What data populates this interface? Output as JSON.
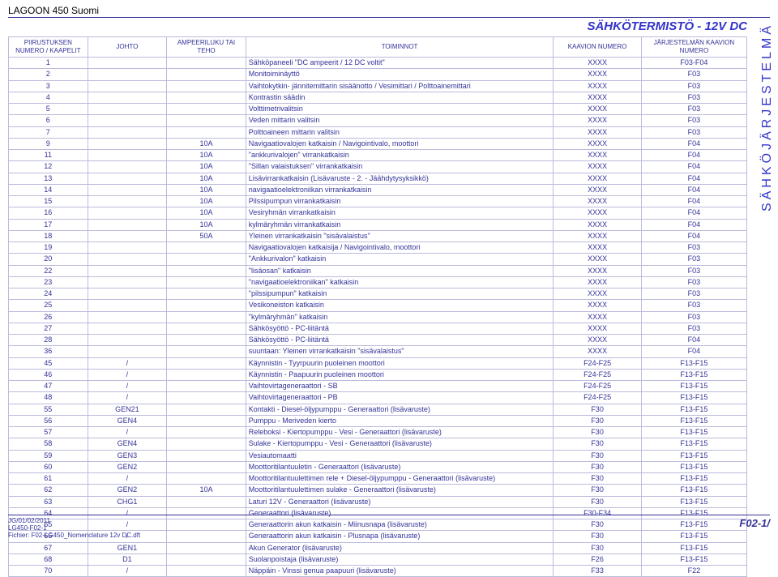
{
  "page": {
    "product": "LAGOON 450 Suomi",
    "header_title_main": "SÄHKÖTERMISTÖ - ",
    "header_title_volt": "12V DC",
    "vertical_label": "SÄHKÖJÄRJESTELMÄ",
    "footer_date": "JG/01/02/2011",
    "footer_code": "LG450-F02-1",
    "footer_file": "Fichier: F02-LG450_Nomenclature 12v DC.dft",
    "footer_page": "F02-1/"
  },
  "columns": [
    "PIIRUSTUKSEN NUMERO / KAAPELIT",
    "JOHTO",
    "AMPEERILUKU TAI TEHO",
    "TOIMINNOT",
    "KAAVION NUMERO",
    "JÄRJESTELMÄN KAAVION NUMERO"
  ],
  "rows": [
    {
      "n": "1",
      "j": "",
      "a": "",
      "f": "Sähköpaneeli \"DC ampeerit / 12 DC voltit\"",
      "k": "XXXX",
      "s": "F03-F04"
    },
    {
      "n": "2",
      "j": "",
      "a": "",
      "f": "Monitoiminäyttö",
      "k": "XXXX",
      "s": "F03"
    },
    {
      "n": "3",
      "j": "",
      "a": "",
      "f": "Vaihtokytkin- jännitemittarin sisäänotto / Vesimittari / Polttoainemittari",
      "k": "XXXX",
      "s": "F03"
    },
    {
      "n": "4",
      "j": "",
      "a": "",
      "f": "Kontrastin säädin",
      "k": "XXXX",
      "s": "F03"
    },
    {
      "n": "5",
      "j": "",
      "a": "",
      "f": "Volttimetrivalitsin",
      "k": "XXXX",
      "s": "F03"
    },
    {
      "n": "6",
      "j": "",
      "a": "",
      "f": "Veden mittarin valitsin",
      "k": "XXXX",
      "s": "F03"
    },
    {
      "n": "7",
      "j": "",
      "a": "",
      "f": "Polttoaineen mittarin valitsin",
      "k": "XXXX",
      "s": "F03"
    },
    {
      "n": "9",
      "j": "",
      "a": "10A",
      "f": "Navigaatiovalojen katkaisin / Navigointivalo, moottori",
      "k": "XXXX",
      "s": "F04"
    },
    {
      "n": "11",
      "j": "",
      "a": "10A",
      "f": "\"ankkurivalojen\" virrankatkaisin",
      "k": "XXXX",
      "s": "F04"
    },
    {
      "n": "12",
      "j": "",
      "a": "10A",
      "f": "\"Sillan valaistuksen\" virrankatkaisin",
      "k": "XXXX",
      "s": "F04"
    },
    {
      "n": "13",
      "j": "",
      "a": "10A",
      "f": "Lisävirrankatkaisin (Lisävaruste - 2. - Jäähdytysyksikkö)",
      "k": "XXXX",
      "s": "F04"
    },
    {
      "n": "14",
      "j": "",
      "a": "10A",
      "f": "navigaatioelektroniikan virrankatkaisin",
      "k": "XXXX",
      "s": "F04"
    },
    {
      "n": "15",
      "j": "",
      "a": "10A",
      "f": "Pilssipumpun virrankatkaisin",
      "k": "XXXX",
      "s": "F04"
    },
    {
      "n": "16",
      "j": "",
      "a": "10A",
      "f": "Vesiryhmän virrankatkaisin",
      "k": "XXXX",
      "s": "F04"
    },
    {
      "n": "17",
      "j": "",
      "a": "10A",
      "f": "kylmäryhmän virrankatkaisin",
      "k": "XXXX",
      "s": "F04"
    },
    {
      "n": "18",
      "j": "",
      "a": "50A",
      "f": "Yleinen virrankatkaisin \"sisävalaistus\"",
      "k": "XXXX",
      "s": "F04"
    },
    {
      "n": "19",
      "j": "",
      "a": "",
      "f": "Navigaatiovalojen katkaisija / Navigointivalo, moottori",
      "k": "XXXX",
      "s": "F03"
    },
    {
      "n": "20",
      "j": "",
      "a": "",
      "f": "\"Ankkurivalon\" katkaisin",
      "k": "XXXX",
      "s": "F03"
    },
    {
      "n": "22",
      "j": "",
      "a": "",
      "f": "\"lisäosan\" katkaisin",
      "k": "XXXX",
      "s": "F03"
    },
    {
      "n": "23",
      "j": "",
      "a": "",
      "f": "\"navigaatioelektroniikan\" katkaisin",
      "k": "XXXX",
      "s": "F03"
    },
    {
      "n": "24",
      "j": "",
      "a": "",
      "f": "\"pilssipumpun\" katkaisin",
      "k": "XXXX",
      "s": "F03"
    },
    {
      "n": "25",
      "j": "",
      "a": "",
      "f": "Vesikoneiston katkaisin",
      "k": "XXXX",
      "s": "F03"
    },
    {
      "n": "26",
      "j": "",
      "a": "",
      "f": "\"kylmäryhmän\" katkaisin",
      "k": "XXXX",
      "s": "F03"
    },
    {
      "n": "27",
      "j": "",
      "a": "",
      "f": "Sähkösyöttö - PC-liitäntä",
      "k": "XXXX",
      "s": "F03"
    },
    {
      "n": "28",
      "j": "",
      "a": "",
      "f": "Sähkösyöttö - PC-liitäntä",
      "k": "XXXX",
      "s": "F04"
    },
    {
      "n": "36",
      "j": "",
      "a": "",
      "f": "suuntaan: Yleinen virrankatkaisin \"sisävalaistus\"",
      "k": "XXXX",
      "s": "F04"
    },
    {
      "n": "45",
      "j": "/",
      "a": "",
      "f": "Käynnistin - Tyyrpuurin puoleinen moottori",
      "k": "F24-F25",
      "s": "F13-F15"
    },
    {
      "n": "46",
      "j": "/",
      "a": "",
      "f": "Käynnistin - Paapuurin puoleinen moottori",
      "k": "F24-F25",
      "s": "F13-F15"
    },
    {
      "n": "47",
      "j": "/",
      "a": "",
      "f": "Vaihtovirtageneraattori - SB",
      "k": "F24-F25",
      "s": "F13-F15"
    },
    {
      "n": "48",
      "j": "/",
      "a": "",
      "f": "Vaihtovirtageneraattori - PB",
      "k": "F24-F25",
      "s": "F13-F15"
    },
    {
      "n": "55",
      "j": "GEN21",
      "a": "",
      "f": "Kontakti - Diesel-öljypumppu - Generaattori (lisävaruste)",
      "k": "F30",
      "s": "F13-F15"
    },
    {
      "n": "56",
      "j": "GEN4",
      "a": "",
      "f": "Pumppu - Meriveden kierto",
      "k": "F30",
      "s": "F13-F15"
    },
    {
      "n": "57",
      "j": "/",
      "a": "",
      "f": "Releboksi - Kiertopumppu -  Vesi - Generaattori (lisävaruste)",
      "k": "F30",
      "s": "F13-F15"
    },
    {
      "n": "58",
      "j": "GEN4",
      "a": "",
      "f": "Sulake - Kiertopumppu -  Vesi - Generaattori (lisävaruste)",
      "k": "F30",
      "s": "F13-F15"
    },
    {
      "n": "59",
      "j": "GEN3",
      "a": "",
      "f": "Vesiautomaatti",
      "k": "F30",
      "s": "F13-F15"
    },
    {
      "n": "60",
      "j": "GEN2",
      "a": "",
      "f": "Moottoritilantuuletin - Generaattori (lisävaruste)",
      "k": "F30",
      "s": "F13-F15"
    },
    {
      "n": "61",
      "j": "/",
      "a": "",
      "f": "Moottoritilantuulettimen rele + Diesel-öljypumppu - Generaattori (lisävaruste)",
      "k": "F30",
      "s": "F13-F15"
    },
    {
      "n": "62",
      "j": "GEN2",
      "a": "10A",
      "f": "Moottoritilantuulettimen sulake - Generaattori (lisävaruste)",
      "k": "F30",
      "s": "F13-F15"
    },
    {
      "n": "63",
      "j": "CHG1",
      "a": "",
      "f": "Laturi 12V - Generaattori (lisävaruste)",
      "k": "F30",
      "s": "F13-F15"
    },
    {
      "n": "64",
      "j": "/",
      "a": "",
      "f": "Generaattori (lisävaruste)",
      "k": "F30-F34",
      "s": "F13-F15"
    },
    {
      "n": "65",
      "j": "/",
      "a": "",
      "f": "Generaattorin akun katkaisin - Miinusnapa (lisävaruste)",
      "k": "F30",
      "s": "F13-F15"
    },
    {
      "n": "66",
      "j": "/",
      "a": "",
      "f": "Generaattorin akun katkaisin - Plusnapa (lisävaruste)",
      "k": "F30",
      "s": "F13-F15"
    },
    {
      "n": "67",
      "j": "GEN1",
      "a": "",
      "f": "Akun Generator (lisävaruste)",
      "k": "F30",
      "s": "F13-F15"
    },
    {
      "n": "68",
      "j": "D1",
      "a": "",
      "f": "Suolanpoistaja (lisävaruste)",
      "k": "F26",
      "s": "F13-F15"
    },
    {
      "n": "70",
      "j": "/",
      "a": "",
      "f": "Näppäin - Vinssi genua paapuuri (lisävaruste)",
      "k": "F33",
      "s": "F22"
    }
  ]
}
